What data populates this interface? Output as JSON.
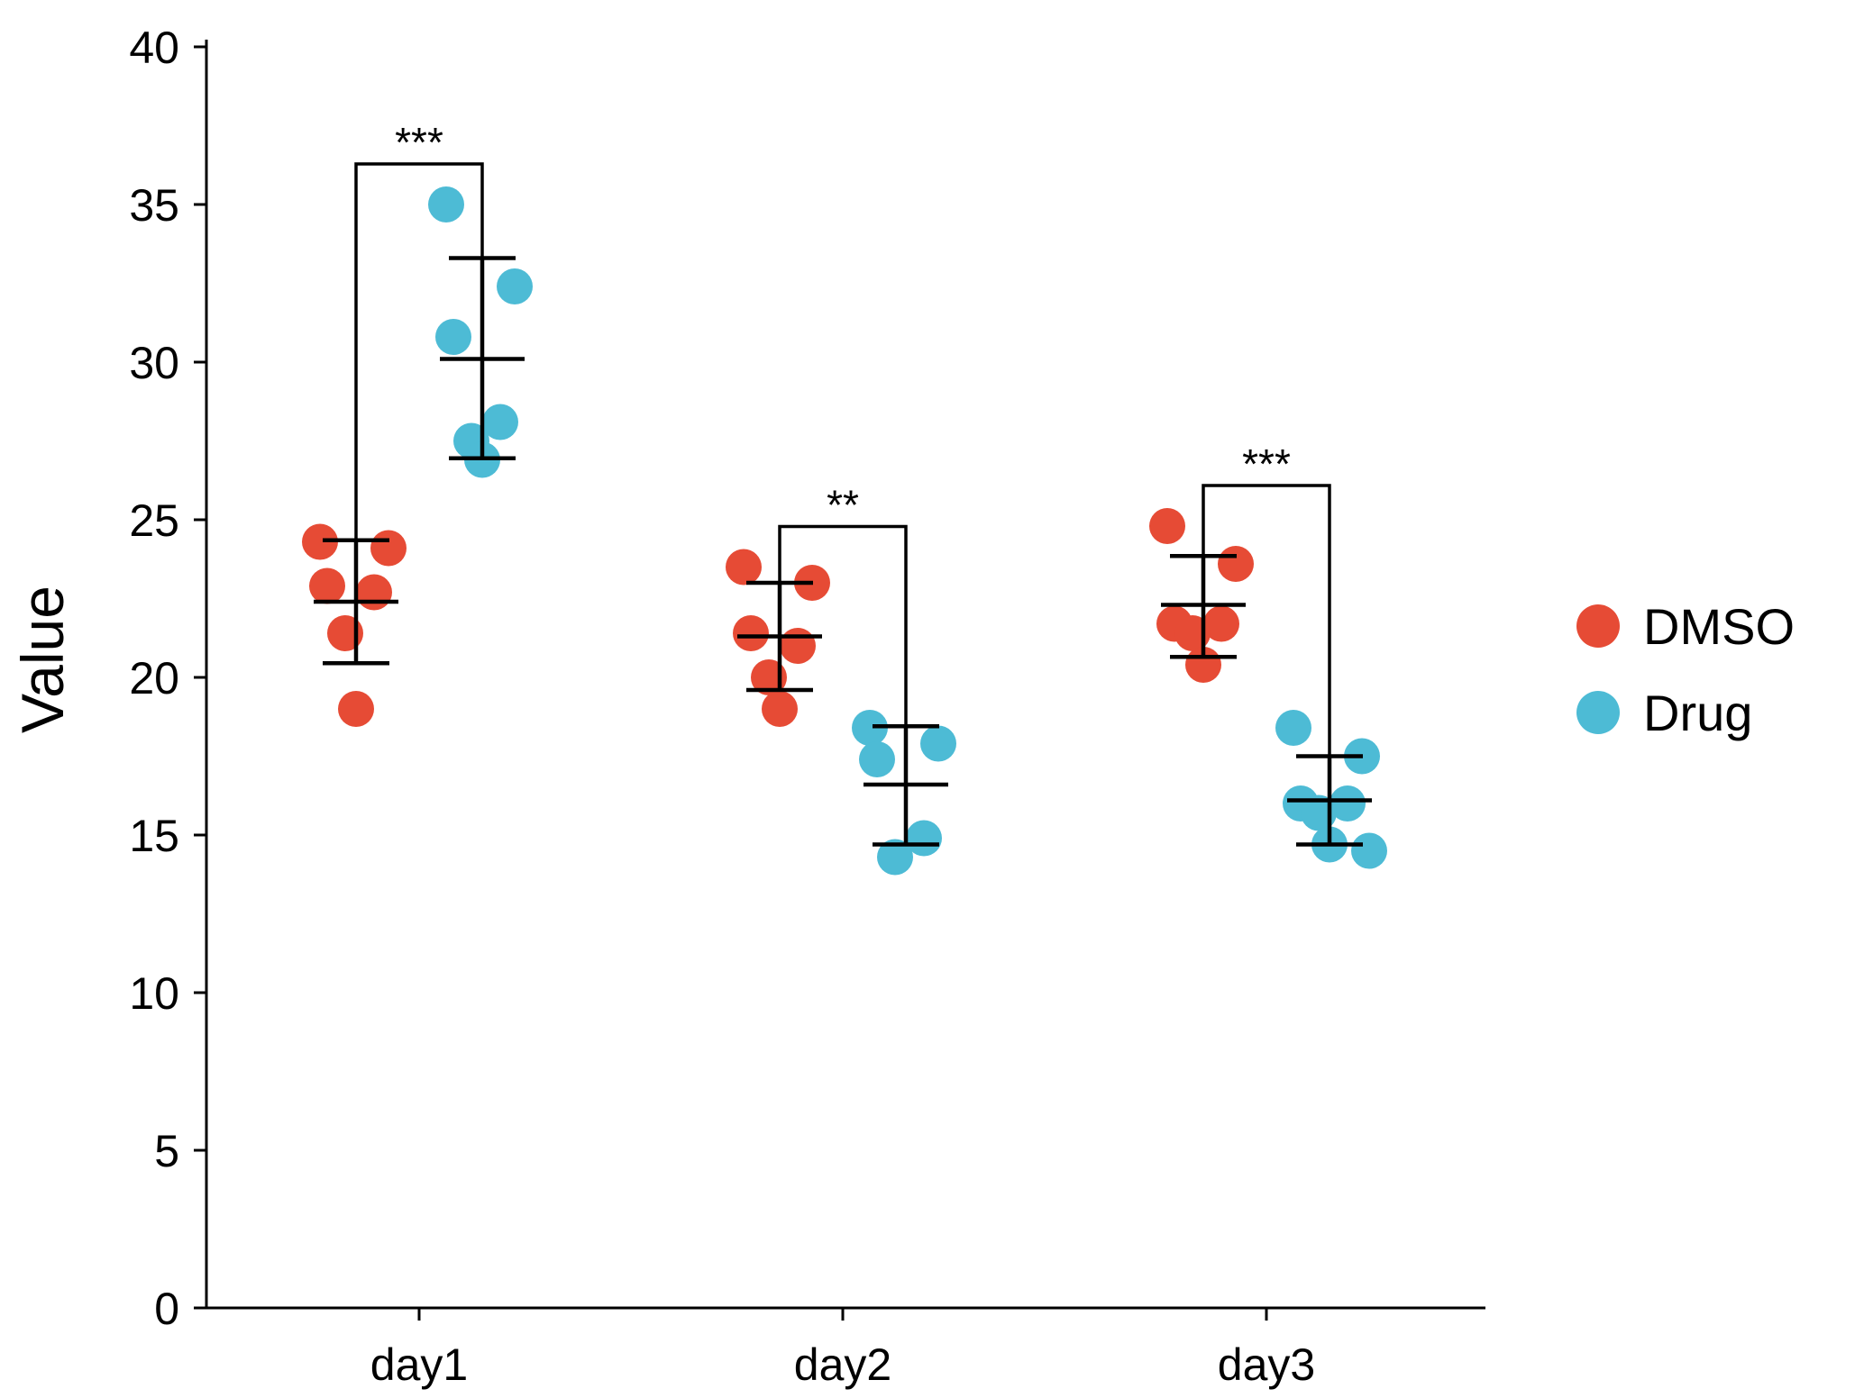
{
  "chart_data": {
    "type": "scatter",
    "ylabel": "Value",
    "xlabel": "",
    "ylim": [
      0,
      40
    ],
    "yticks": [
      0,
      5,
      10,
      15,
      20,
      25,
      30,
      35,
      40
    ],
    "categories": [
      "day1",
      "day2",
      "day3"
    ],
    "legend_position": "right",
    "grid": false,
    "series": [
      {
        "name": "DMSO",
        "color": "#E64B35",
        "groups": [
          {
            "category": "day1",
            "points": [
              24.3,
              24.1,
              22.9,
              22.7,
              21.4,
              19.0
            ],
            "mean": 22.4,
            "sd_upper": 24.35,
            "sd_lower": 20.45
          },
          {
            "category": "day2",
            "points": [
              23.5,
              23.0,
              21.4,
              21.0,
              20.0,
              19.0
            ],
            "mean": 21.3,
            "sd_upper": 23.0,
            "sd_lower": 19.6
          },
          {
            "category": "day3",
            "points": [
              24.8,
              23.6,
              21.7,
              21.7,
              21.4,
              20.4
            ],
            "mean": 22.3,
            "sd_upper": 23.85,
            "sd_lower": 20.65
          }
        ]
      },
      {
        "name": "Drug",
        "color": "#4DBBD5",
        "groups": [
          {
            "category": "day1",
            "points": [
              35.0,
              32.4,
              30.8,
              28.1,
              27.5,
              26.9
            ],
            "mean": 30.1,
            "sd_upper": 33.3,
            "sd_lower": 26.95
          },
          {
            "category": "day2",
            "points": [
              18.4,
              17.9,
              17.4,
              14.9,
              14.3
            ],
            "mean": 16.6,
            "sd_upper": 18.45,
            "sd_lower": 14.7
          },
          {
            "category": "day3",
            "points": [
              18.4,
              17.5,
              16.0,
              16.0,
              15.7,
              14.7,
              14.5
            ],
            "mean": 16.1,
            "sd_upper": 17.5,
            "sd_lower": 14.7
          }
        ]
      }
    ],
    "significance": [
      {
        "category": "day1",
        "label": "***"
      },
      {
        "category": "day2",
        "label": "**"
      },
      {
        "category": "day3",
        "label": "***"
      }
    ]
  }
}
